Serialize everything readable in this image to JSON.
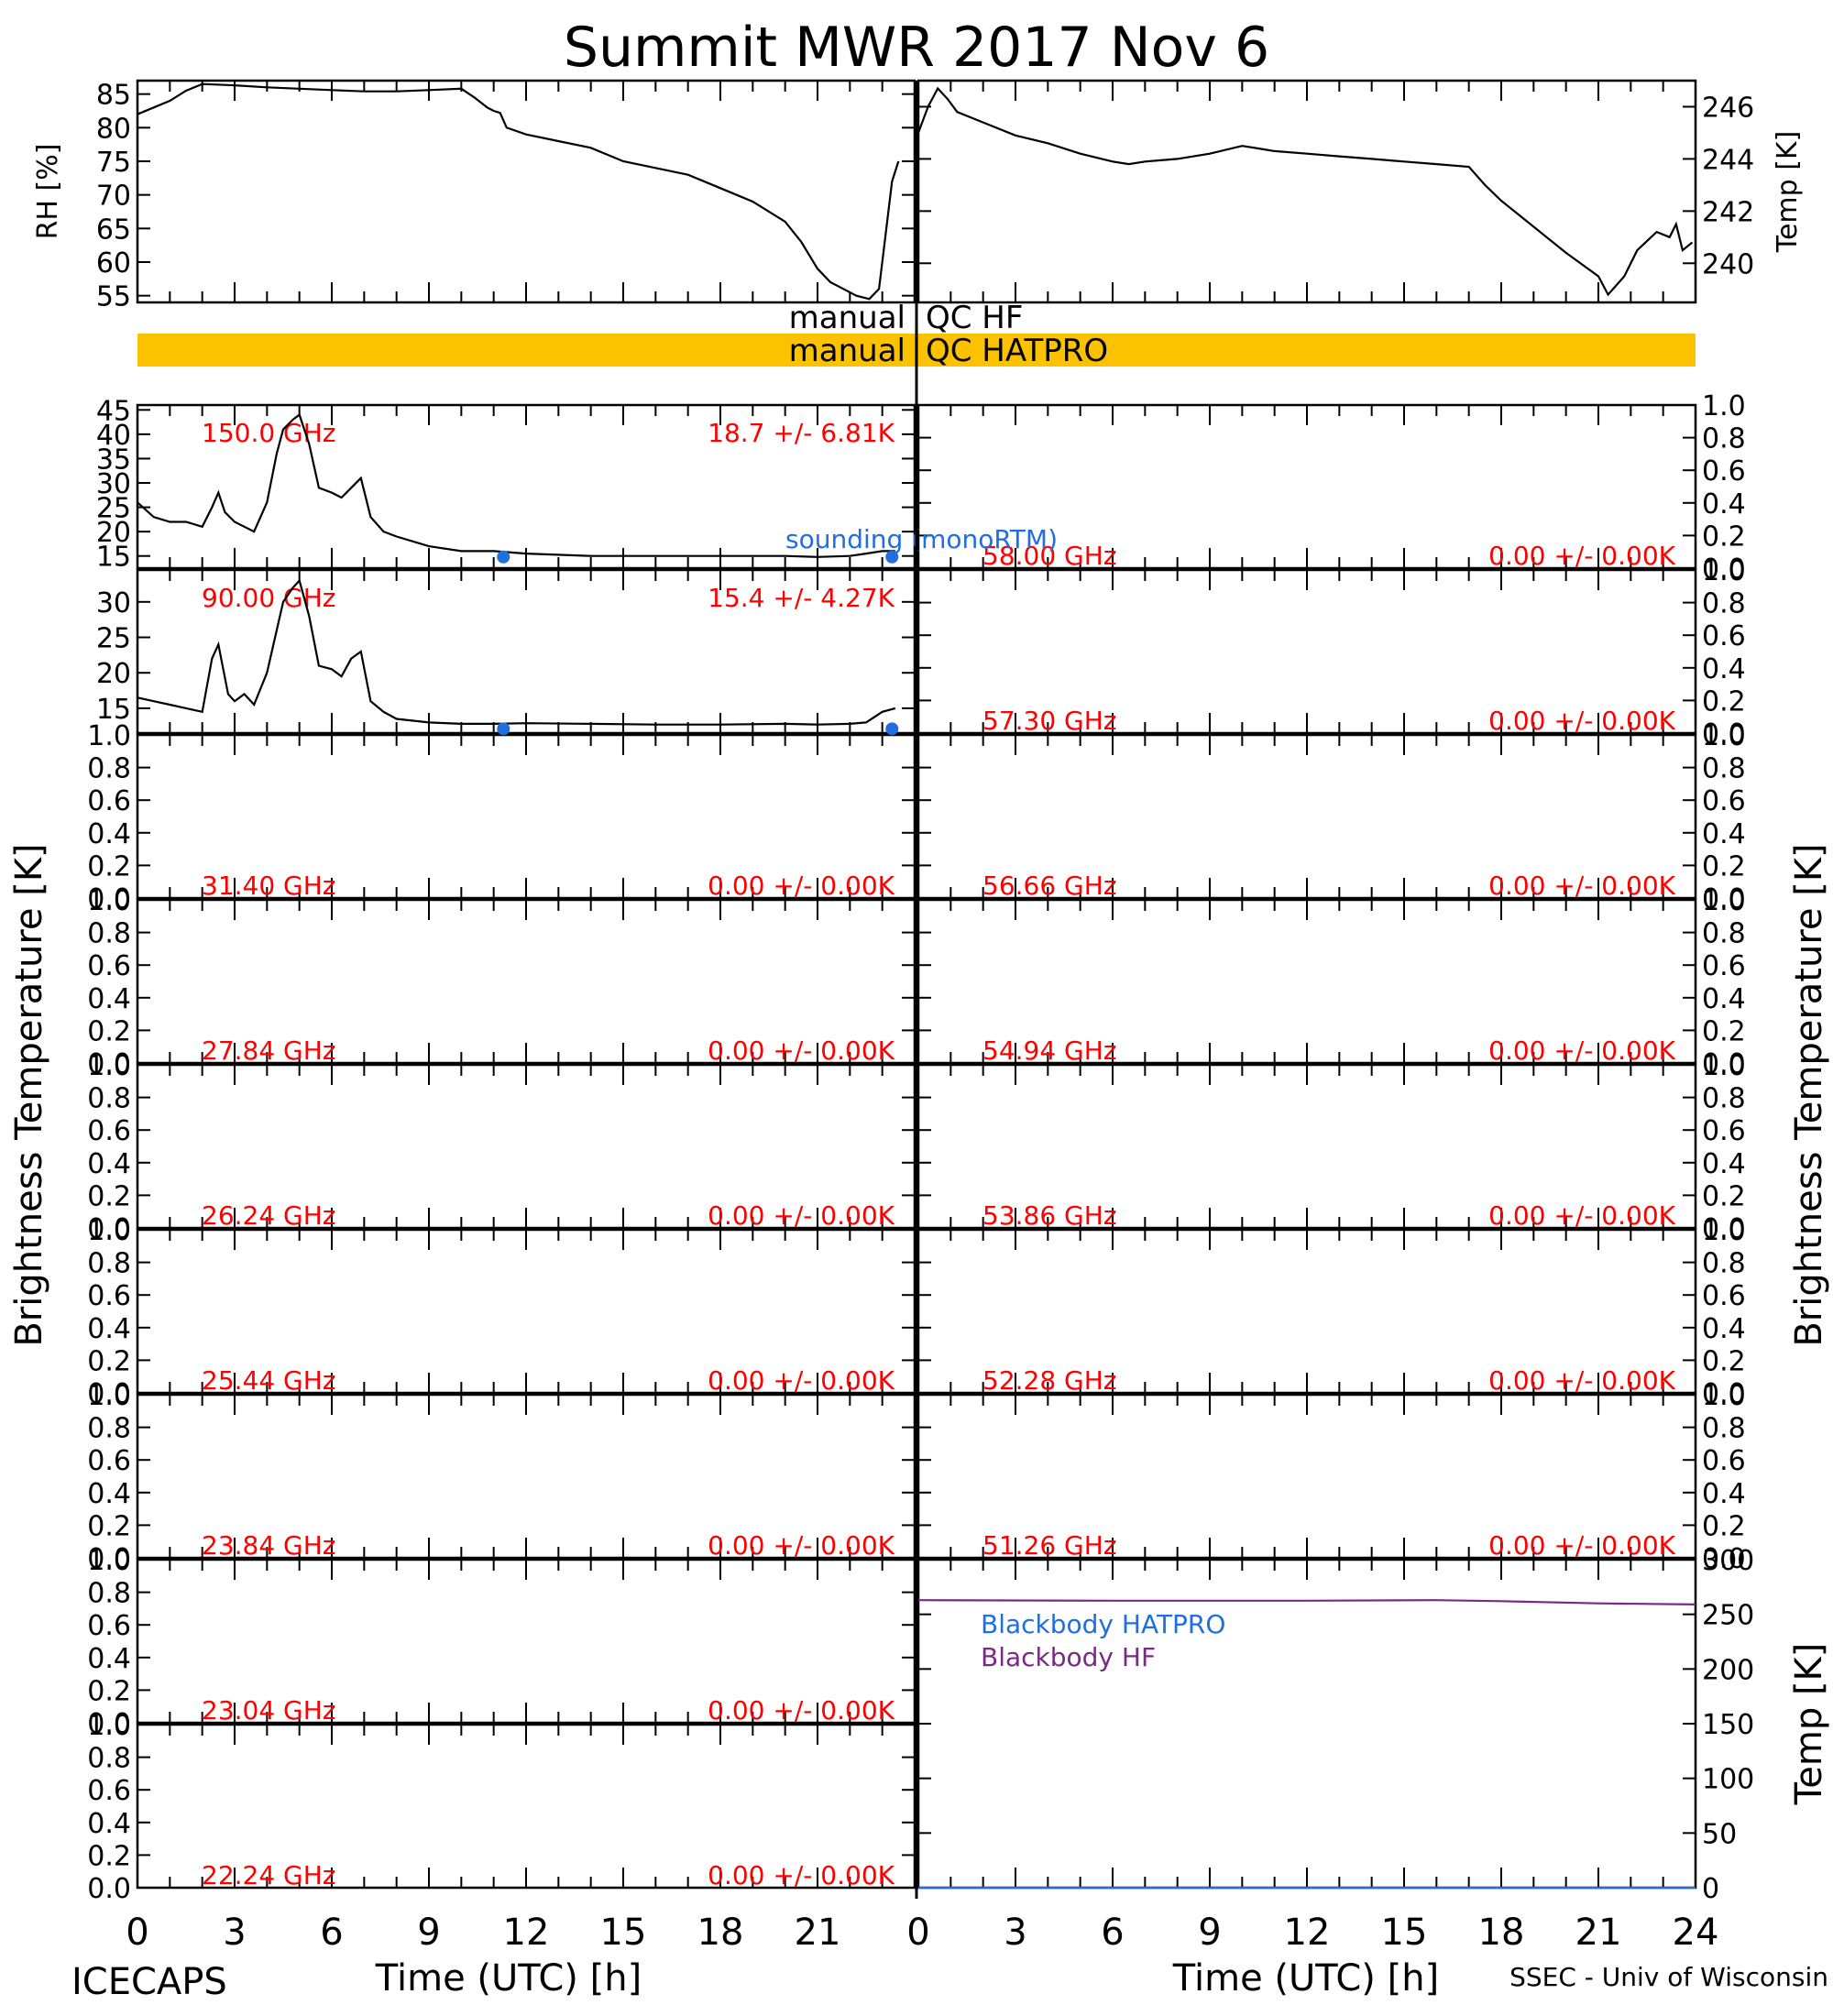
{
  "title": "Summit MWR 2017 Nov  6",
  "footer": {
    "left": "ICECAPS",
    "right": "SSEC - Univ of Wisconsin"
  },
  "x_axis": {
    "label": "Time (UTC) [h]",
    "ticks": [
      "0",
      "3",
      "6",
      "9",
      "12",
      "15",
      "18",
      "21"
    ],
    "ticks_right": [
      "0",
      "3",
      "6",
      "9",
      "12",
      "15",
      "18",
      "21",
      "24"
    ],
    "range": [
      0,
      24
    ]
  },
  "left_axis_label": "Brightness Temperature [K]",
  "right_axis_label": "Brightness Temperature [K]",
  "qc_rows": [
    {
      "left": "manual",
      "right": "QC HF",
      "color": "#ffffff"
    },
    {
      "left": "manual",
      "right": "QC HATPRO",
      "color": "#fcc200"
    }
  ],
  "colors": {
    "data": "#000000",
    "label": "#ff0000",
    "sounding": "#1f6fe0",
    "bb_hatpro": "#1f6fe0",
    "bb_hf": "#7a2a86",
    "qc_bar": "#fcc200"
  },
  "chart_data": [
    {
      "id": "rh",
      "type": "line",
      "ylabel": "RH [%]",
      "ylim": [
        54,
        87
      ],
      "yticks": [
        "55",
        "60",
        "65",
        "70",
        "75",
        "80",
        "85"
      ],
      "x": [
        0,
        0.5,
        1,
        1.5,
        2,
        3,
        4,
        5,
        6,
        7,
        8,
        9,
        10,
        10.4,
        10.8,
        11,
        11.2,
        11.4,
        12,
        13,
        14,
        15,
        16,
        17,
        18,
        19,
        20,
        20.5,
        21,
        21.4,
        21.8,
        22.2,
        22.6,
        22.9,
        23.1,
        23.3,
        23.5
      ],
      "y": [
        82,
        83,
        84,
        85.5,
        86.5,
        86.3,
        86,
        85.8,
        85.6,
        85.4,
        85.4,
        85.6,
        85.8,
        84.5,
        83,
        82.5,
        82.2,
        80,
        79,
        78,
        77,
        75,
        74,
        73,
        71,
        69,
        66,
        63,
        59,
        57,
        56,
        55,
        54.5,
        56,
        64,
        72,
        75
      ]
    },
    {
      "id": "temp",
      "type": "line",
      "ylabel": "Temp [K]",
      "ylim": [
        238.5,
        247
      ],
      "yticks": [
        "240",
        "242",
        "244",
        "246"
      ],
      "x": [
        0,
        0.3,
        0.6,
        0.9,
        1.2,
        2,
        3,
        4,
        5,
        6,
        6.5,
        7,
        8,
        9,
        10,
        10.5,
        11,
        12,
        13,
        14,
        15,
        16,
        17,
        17.5,
        18,
        19,
        20,
        21,
        21.3,
        21.8,
        22.2,
        22.8,
        23.2,
        23.4,
        23.6,
        23.9
      ],
      "y": [
        245,
        246,
        246.7,
        246.3,
        245.8,
        245.4,
        244.9,
        244.6,
        244.2,
        243.9,
        243.8,
        243.9,
        244,
        244.2,
        244.5,
        244.4,
        244.3,
        244.2,
        244.1,
        244,
        243.9,
        243.8,
        243.7,
        243,
        242.4,
        241.4,
        240.4,
        239.5,
        238.8,
        239.5,
        240.5,
        241.2,
        241,
        241.5,
        240.5,
        240.8
      ]
    },
    {
      "id": "ch150",
      "type": "line",
      "label": "150.0 GHz",
      "stats": "18.7 +/-  6.81K",
      "ylim": [
        12.5,
        46
      ],
      "yticks": [
        "15",
        "20",
        "25",
        "30",
        "35",
        "40",
        "45"
      ],
      "x": [
        0,
        0.5,
        1,
        1.5,
        2,
        2.3,
        2.5,
        2.7,
        3,
        3.3,
        3.6,
        4,
        4.3,
        4.5,
        4.8,
        5,
        5.3,
        5.6,
        6,
        6.3,
        6.6,
        6.9,
        7.2,
        7.6,
        8,
        9,
        10,
        11,
        12,
        14,
        16,
        18,
        20,
        21,
        22,
        22.5,
        23,
        23.4
      ],
      "y": [
        26,
        23,
        22,
        22,
        21,
        25,
        28,
        24,
        22,
        21,
        20,
        26,
        36,
        41,
        43,
        44,
        38,
        29,
        28,
        27,
        29,
        31,
        23,
        20,
        19,
        17,
        16,
        16,
        15.5,
        15,
        15,
        15,
        15,
        14.8,
        15,
        15.5,
        16,
        16
      ]
    },
    {
      "id": "ch90",
      "type": "line",
      "label": "90.00 GHz",
      "stats": "15.4 +/-  4.27K",
      "ylim": [
        11.5,
        34.5
      ],
      "yticks": [
        "15",
        "20",
        "25",
        "30"
      ],
      "x": [
        0,
        0.5,
        1,
        1.5,
        2,
        2.3,
        2.5,
        2.8,
        3,
        3.3,
        3.6,
        4,
        4.3,
        4.5,
        4.8,
        5,
        5.3,
        5.6,
        6,
        6.3,
        6.6,
        6.9,
        7.2,
        7.6,
        8,
        9,
        10,
        11,
        12,
        14,
        16,
        18,
        20,
        21,
        22,
        22.5,
        23,
        23.4
      ],
      "y": [
        16.5,
        16,
        15.5,
        15,
        14.5,
        22,
        24,
        17,
        16,
        17,
        15.5,
        20,
        26,
        30,
        32,
        33,
        28,
        21,
        20.5,
        19.5,
        22,
        23,
        16,
        14.5,
        13.5,
        13,
        12.8,
        12.8,
        12.9,
        12.8,
        12.7,
        12.7,
        12.8,
        12.7,
        12.8,
        13,
        14.5,
        15
      ]
    },
    {
      "id": "ch58",
      "type": "line",
      "label": "58.00 GHz",
      "stats": "0.00 +/-  0.00K",
      "ylim": [
        0,
        1
      ],
      "yticks": [
        "0.0",
        "0.2",
        "0.4",
        "0.6",
        "0.8",
        "1.0"
      ]
    },
    {
      "id": "ch5730",
      "type": "line",
      "label": "57.30 GHz",
      "stats": "0.00 +/-  0.00K",
      "ylim": [
        0,
        1
      ],
      "yticks": [
        "0.0",
        "0.2",
        "0.4",
        "0.6",
        "0.8",
        "1.0"
      ]
    },
    {
      "id": "ch3140",
      "type": "line",
      "label": "31.40 GHz",
      "stats": "0.00 +/-  0.00K",
      "ylim": [
        0,
        1
      ],
      "yticks": [
        "0.0",
        "0.2",
        "0.4",
        "0.6",
        "0.8",
        "1.0"
      ]
    },
    {
      "id": "ch5666",
      "type": "line",
      "label": "56.66 GHz",
      "stats": "0.00 +/-  0.00K",
      "ylim": [
        0,
        1
      ],
      "yticks": [
        "0.0",
        "0.2",
        "0.4",
        "0.6",
        "0.8",
        "1.0"
      ]
    },
    {
      "id": "ch2784",
      "type": "line",
      "label": "27.84 GHz",
      "stats": "0.00 +/-  0.00K",
      "ylim": [
        0,
        1
      ],
      "yticks": [
        "0.0",
        "0.2",
        "0.4",
        "0.6",
        "0.8",
        "1.0"
      ]
    },
    {
      "id": "ch5494",
      "type": "line",
      "label": "54.94 GHz",
      "stats": "0.00 +/-  0.00K",
      "ylim": [
        0,
        1
      ],
      "yticks": [
        "0.0",
        "0.2",
        "0.4",
        "0.6",
        "0.8",
        "1.0"
      ]
    },
    {
      "id": "ch2624",
      "type": "line",
      "label": "26.24 GHz",
      "stats": "0.00 +/-  0.00K",
      "ylim": [
        0,
        1
      ],
      "yticks": [
        "0.0",
        "0.2",
        "0.4",
        "0.6",
        "0.8",
        "1.0"
      ]
    },
    {
      "id": "ch5386",
      "type": "line",
      "label": "53.86 GHz",
      "stats": "0.00 +/-  0.00K",
      "ylim": [
        0,
        1
      ],
      "yticks": [
        "0.0",
        "0.2",
        "0.4",
        "0.6",
        "0.8",
        "1.0"
      ]
    },
    {
      "id": "ch2544",
      "type": "line",
      "label": "25.44 GHz",
      "stats": "0.00 +/-  0.00K",
      "ylim": [
        0,
        1
      ],
      "yticks": [
        "0.0",
        "0.2",
        "0.4",
        "0.6",
        "0.8",
        "1.0"
      ]
    },
    {
      "id": "ch5228",
      "type": "line",
      "label": "52.28 GHz",
      "stats": "0.00 +/-  0.00K",
      "ylim": [
        0,
        1
      ],
      "yticks": [
        "0.0",
        "0.2",
        "0.4",
        "0.6",
        "0.8",
        "1.0"
      ]
    },
    {
      "id": "ch2384",
      "type": "line",
      "label": "23.84 GHz",
      "stats": "0.00 +/-  0.00K",
      "ylim": [
        0,
        1
      ],
      "yticks": [
        "0.0",
        "0.2",
        "0.4",
        "0.6",
        "0.8",
        "1.0"
      ]
    },
    {
      "id": "ch5126",
      "type": "line",
      "label": "51.26 GHz",
      "stats": "0.00 +/-  0.00K",
      "ylim": [
        0,
        1
      ],
      "yticks": [
        "0.0",
        "0.2",
        "0.4",
        "0.6",
        "0.8",
        "1.0"
      ]
    },
    {
      "id": "ch2304",
      "type": "line",
      "label": "23.04 GHz",
      "stats": "0.00 +/-  0.00K",
      "ylim": [
        0,
        1
      ],
      "yticks": [
        "0.0",
        "0.2",
        "0.4",
        "0.6",
        "0.8",
        "1.0"
      ]
    },
    {
      "id": "ch2224",
      "type": "line",
      "label": "22.24 GHz",
      "stats": "0.00 +/-  0.00K",
      "ylim": [
        0,
        1
      ],
      "yticks": [
        "0.0",
        "0.2",
        "0.4",
        "0.6",
        "0.8",
        "1.0"
      ]
    },
    {
      "id": "blackbody",
      "type": "line",
      "ylabel": "Temp [K]",
      "ylim": [
        0,
        300
      ],
      "yticks": [
        "0",
        "50",
        "100",
        "150",
        "200",
        "250",
        "300"
      ],
      "series": [
        {
          "name": "Blackbody HATPRO",
          "x": [
            0,
            24
          ],
          "y": [
            0,
            0
          ]
        },
        {
          "name": "Blackbody HF",
          "x": [
            0,
            6,
            12,
            16,
            18,
            21,
            24
          ],
          "y": [
            263,
            262.5,
            262.5,
            263,
            262,
            260,
            259
          ]
        }
      ]
    }
  ],
  "sounding": {
    "label": "sounding (monoRTM)",
    "ch150": {
      "x": [
        11.3,
        23.3
      ],
      "y": [
        14.8,
        14.8
      ]
    },
    "ch90": {
      "x": [
        11.3,
        23.3
      ],
      "y": [
        12.1,
        12.1
      ]
    }
  }
}
